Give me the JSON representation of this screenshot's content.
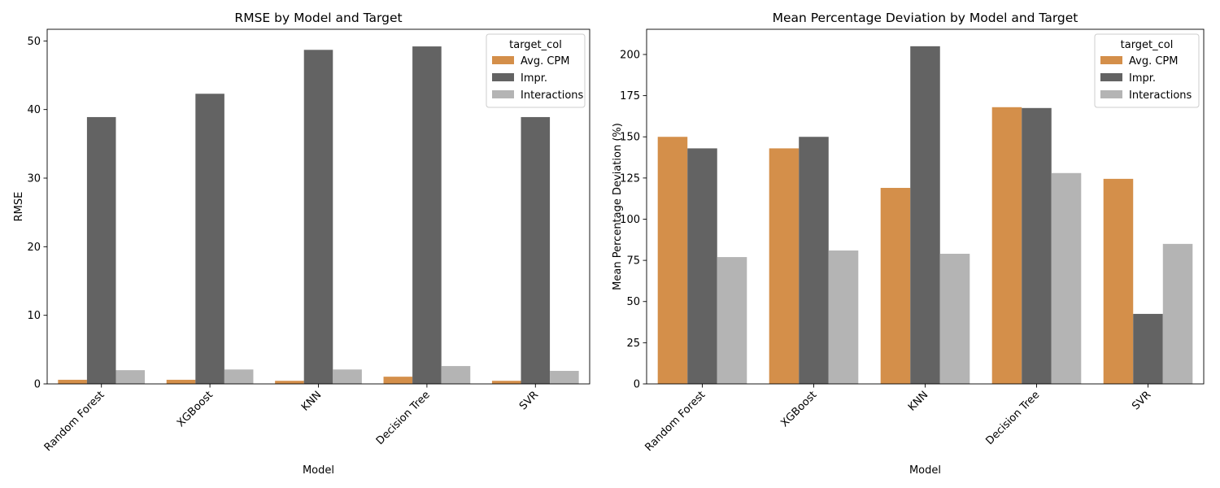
{
  "legend_title": "target_col",
  "chart_data": [
    {
      "type": "bar",
      "title": "RMSE by Model and Target",
      "xlabel": "Model",
      "ylabel": "RMSE",
      "categories": [
        "Random Forest",
        "XGBoost",
        "KNN",
        "Decision Tree",
        "SVR"
      ],
      "ylim": [
        0,
        51.7
      ],
      "yticks": [
        0,
        10,
        20,
        30,
        40,
        50
      ],
      "legend_position": "top-right",
      "grid": false,
      "series": [
        {
          "name": "Avg. CPM",
          "color": "#D48F4A",
          "values": [
            0.6,
            0.6,
            0.45,
            1.05,
            0.45
          ]
        },
        {
          "name": "Impr.",
          "color": "#636363",
          "values": [
            38.9,
            42.3,
            48.7,
            49.2,
            38.9
          ]
        },
        {
          "name": "Interactions",
          "color": "#B4B4B4",
          "values": [
            2.0,
            2.1,
            2.1,
            2.6,
            1.9
          ]
        }
      ]
    },
    {
      "type": "bar",
      "title": "Mean Percentage Deviation by Model and Target",
      "xlabel": "Model",
      "ylabel": "Mean Percentage Deviation (%)",
      "categories": [
        "Random Forest",
        "XGBoost",
        "KNN",
        "Decision Tree",
        "SVR"
      ],
      "ylim": [
        0,
        215.3
      ],
      "yticks": [
        0,
        25,
        50,
        75,
        100,
        125,
        150,
        175,
        200
      ],
      "legend_position": "top-right",
      "grid": false,
      "series": [
        {
          "name": "Avg. CPM",
          "color": "#D48F4A",
          "values": [
            150,
            143,
            119,
            168,
            124.5
          ]
        },
        {
          "name": "Impr.",
          "color": "#636363",
          "values": [
            143,
            150,
            205,
            167.5,
            42.5
          ]
        },
        {
          "name": "Interactions",
          "color": "#B4B4B4",
          "values": [
            77,
            81,
            79,
            128,
            85
          ]
        }
      ]
    }
  ]
}
